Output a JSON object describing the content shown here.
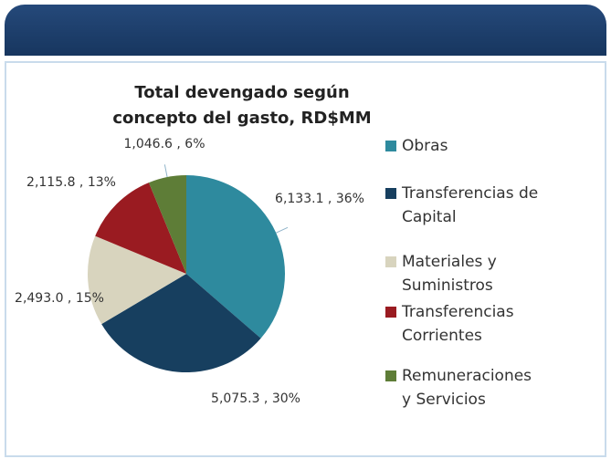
{
  "chart_data": {
    "type": "pie",
    "title": "Total devengado según concepto del gasto, RD$MM",
    "categories": [
      "Obras",
      "Transferencias de Capital",
      "Materiales y Suministros",
      "Transferencias Corrientes",
      "Remuneraciones y Servicios"
    ],
    "values": [
      6133.1,
      5075.3,
      2493.0,
      2115.8,
      1046.6
    ],
    "value_labels": [
      "6,133.1 , 36%",
      "5,075.3 , 30%",
      "2,493.0 , 15%",
      "2,115.8 , 13%",
      "1,046.6 , 6%"
    ],
    "colors": [
      "#2e8a9e",
      "#173f5f",
      "#d8d4be",
      "#9a1b21",
      "#5e7d37"
    ],
    "legend": "right"
  }
}
